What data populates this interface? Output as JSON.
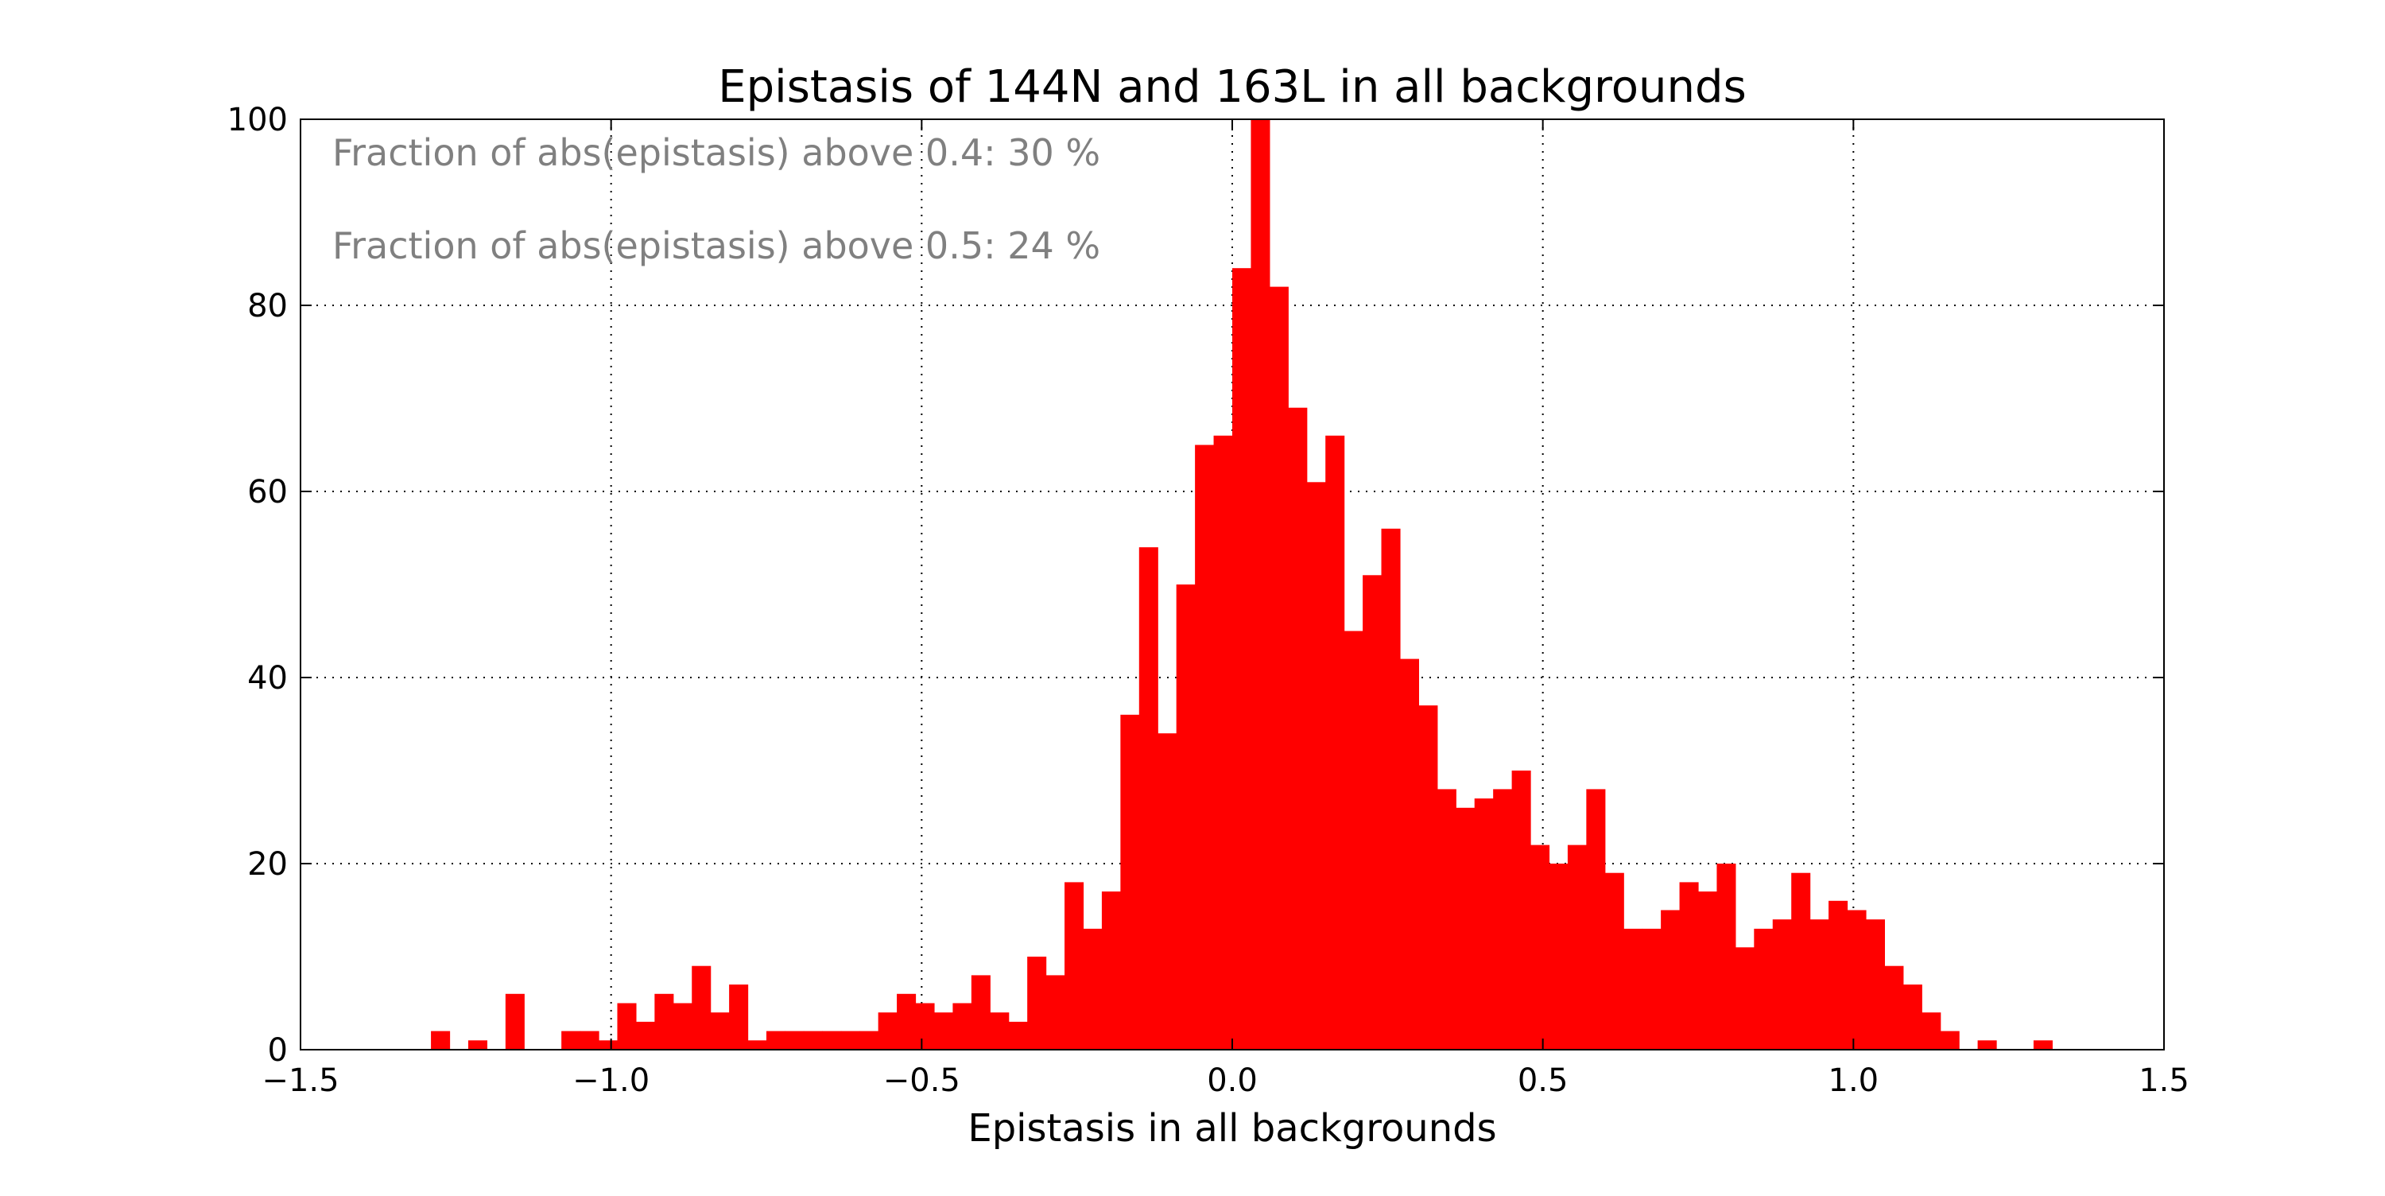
{
  "chart_data": {
    "type": "bar",
    "title": "Epistasis of 144N and 163L in all backgrounds",
    "xlabel": "Epistasis in all backgrounds",
    "ylabel": "",
    "xlim": [
      -1.5,
      1.5
    ],
    "ylim": [
      0,
      100
    ],
    "xticks": [
      -1.5,
      -1.0,
      -0.5,
      0.0,
      0.5,
      1.0,
      1.5
    ],
    "xtick_labels": [
      "−1.5",
      "−1.0",
      "−0.5",
      "0.0",
      "0.5",
      "1.0",
      "1.5"
    ],
    "yticks": [
      0,
      20,
      40,
      60,
      80,
      100
    ],
    "ytick_labels": [
      "0",
      "20",
      "40",
      "60",
      "80",
      "100"
    ],
    "grid": true,
    "bar_color": "#ff0000",
    "annotation_color": "#808080",
    "annotations": [
      "Fraction of abs(epistasis) above 0.4: 30 %",
      "Fraction of abs(epistasis) above 0.5: 24 %"
    ],
    "bin_start": -1.29,
    "bin_width": 0.03,
    "values": [
      2,
      0,
      1,
      0,
      6,
      0,
      0,
      2,
      2,
      1,
      5,
      3,
      6,
      5,
      9,
      4,
      7,
      1,
      2,
      2,
      2,
      2,
      2,
      2,
      4,
      6,
      5,
      4,
      5,
      8,
      4,
      3,
      10,
      8,
      18,
      13,
      17,
      36,
      54,
      34,
      50,
      65,
      66,
      84,
      100,
      82,
      69,
      61,
      66,
      45,
      51,
      56,
      42,
      37,
      28,
      26,
      27,
      28,
      30,
      22,
      20,
      22,
      28,
      19,
      13,
      13,
      15,
      18,
      17,
      20,
      11,
      13,
      14,
      19,
      14,
      16,
      15,
      14,
      9,
      7,
      4,
      2,
      0,
      1,
      0,
      0,
      1
    ]
  }
}
